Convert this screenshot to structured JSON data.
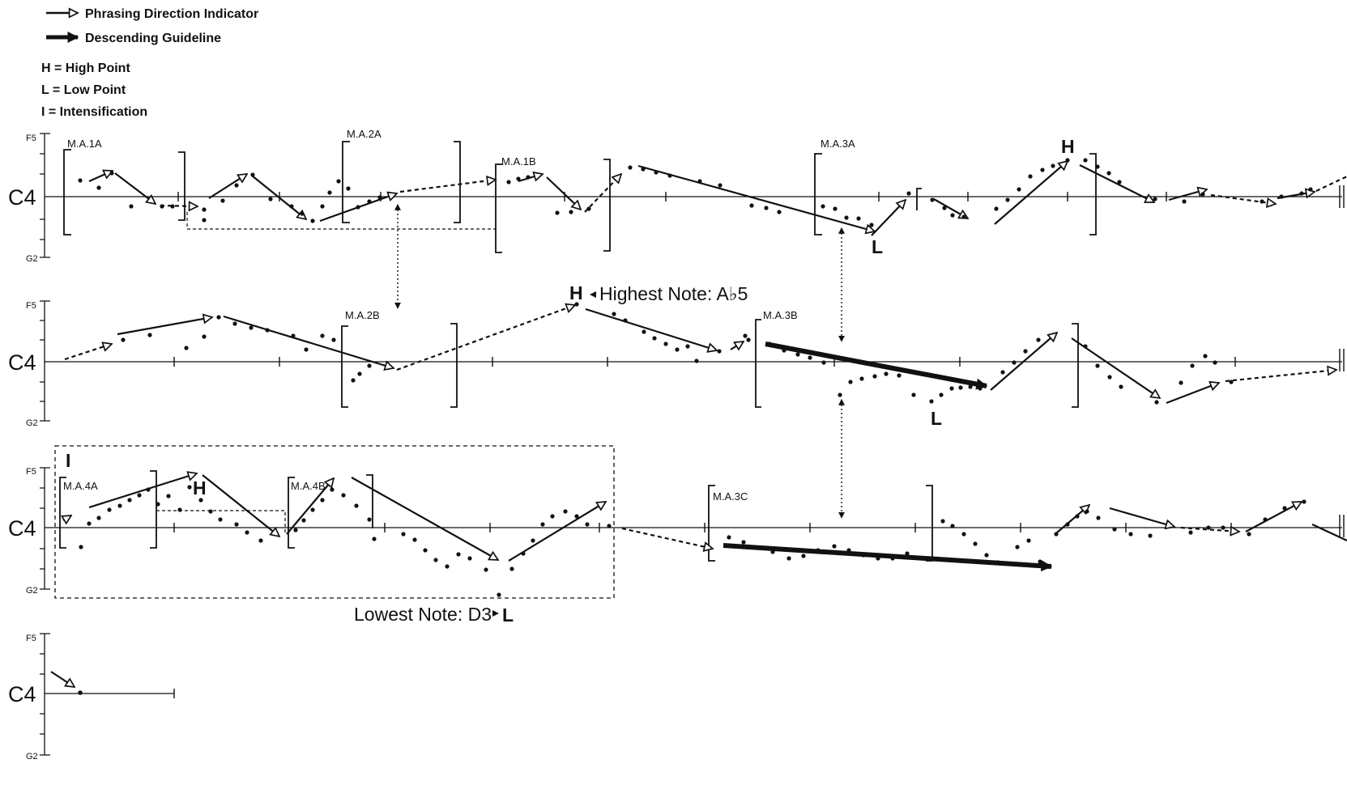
{
  "legend": {
    "phrasing": "Phrasing Direction Indicator",
    "descending": "Descending Guideline",
    "high": "H = High Point",
    "low": "L = Low Point",
    "intens": "I = Intensification"
  },
  "axis": {
    "top": "F5",
    "middle": "C4",
    "bottom": "G2"
  },
  "segments": {
    "s1": "M.A.1A",
    "s2": "M.A.2A",
    "s3": "M.A.1B",
    "s4": "M.A.3A",
    "s5": "M.A.2B",
    "s6": "M.A.3B",
    "s7": "M.A.4A",
    "s8": "M.A.4B",
    "s9": "M.A.3C"
  },
  "marks": {
    "high": "H",
    "low": "L",
    "intens": "I"
  },
  "notes": {
    "highest": "Highest Note: A♭5",
    "lowest": "Lowest Note: D3"
  },
  "colors": {
    "ink": "#111111",
    "background": "#ffffff"
  }
}
